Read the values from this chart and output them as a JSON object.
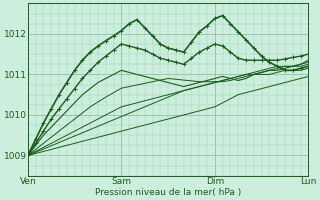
{
  "xlabel": "Pression niveau de la mer( hPa )",
  "bg_color": "#cceedd",
  "grid_color_minor": "#aaccbb",
  "grid_color_major": "#99bbaa",
  "line_color_dark": "#1a5c1a",
  "line_color_mid": "#2a7a2a",
  "ylim": [
    1008.5,
    1012.75
  ],
  "xlim": [
    0,
    72
  ],
  "yticks": [
    1009,
    1010,
    1011,
    1012
  ],
  "xticks": [
    0,
    24,
    48,
    72
  ],
  "xtick_labels": [
    "Ven",
    "Sam",
    "Dim",
    "Lun"
  ],
  "x_pts": [
    0,
    2,
    4,
    6,
    8,
    10,
    12,
    14,
    16,
    18,
    20,
    22,
    24,
    26,
    28,
    30,
    32,
    34,
    36,
    38,
    40,
    42,
    44,
    46,
    48,
    50,
    52,
    54,
    56,
    58,
    60,
    62,
    64,
    66,
    68,
    70,
    72
  ],
  "series": [
    [
      1009.0,
      1009.05,
      1009.1,
      1009.15,
      1009.2,
      1009.25,
      1009.3,
      1009.35,
      1009.4,
      1009.45,
      1009.5,
      1009.55,
      1009.6,
      1009.65,
      1009.7,
      1009.75,
      1009.8,
      1009.85,
      1009.9,
      1009.95,
      1010.0,
      1010.05,
      1010.1,
      1010.15,
      1010.2,
      1010.3,
      1010.4,
      1010.5,
      1010.55,
      1010.6,
      1010.65,
      1010.7,
      1010.75,
      1010.8,
      1010.85,
      1010.9,
      1010.95
    ],
    [
      1009.0,
      1009.08,
      1009.16,
      1009.24,
      1009.32,
      1009.4,
      1009.48,
      1009.56,
      1009.64,
      1009.72,
      1009.8,
      1009.88,
      1009.96,
      1010.04,
      1010.12,
      1010.2,
      1010.28,
      1010.36,
      1010.44,
      1010.52,
      1010.6,
      1010.65,
      1010.7,
      1010.75,
      1010.8,
      1010.85,
      1010.9,
      1010.95,
      1011.0,
      1011.0,
      1011.0,
      1011.0,
      1011.05,
      1011.1,
      1011.1,
      1011.1,
      1011.15
    ],
    [
      1009.0,
      1009.1,
      1009.2,
      1009.3,
      1009.4,
      1009.5,
      1009.6,
      1009.7,
      1009.8,
      1009.9,
      1010.0,
      1010.1,
      1010.2,
      1010.25,
      1010.3,
      1010.35,
      1010.4,
      1010.45,
      1010.5,
      1010.55,
      1010.6,
      1010.65,
      1010.7,
      1010.75,
      1010.8,
      1010.85,
      1010.9,
      1010.95,
      1011.0,
      1011.05,
      1011.1,
      1011.15,
      1011.2,
      1011.2,
      1011.2,
      1011.2,
      1011.25
    ],
    [
      1009.0,
      1009.15,
      1009.3,
      1009.45,
      1009.6,
      1009.75,
      1009.9,
      1010.05,
      1010.2,
      1010.32,
      1010.44,
      1010.55,
      1010.66,
      1010.7,
      1010.74,
      1010.78,
      1010.82,
      1010.86,
      1010.9,
      1010.88,
      1010.86,
      1010.84,
      1010.82,
      1010.82,
      1010.82,
      1010.82,
      1010.85,
      1010.9,
      1010.95,
      1011.0,
      1011.05,
      1011.1,
      1011.15,
      1011.2,
      1011.2,
      1011.25,
      1011.3
    ],
    [
      1009.0,
      1009.25,
      1009.5,
      1009.7,
      1009.9,
      1010.1,
      1010.3,
      1010.5,
      1010.65,
      1010.8,
      1010.9,
      1011.0,
      1011.1,
      1011.05,
      1011.0,
      1010.95,
      1010.9,
      1010.85,
      1010.8,
      1010.75,
      1010.7,
      1010.75,
      1010.8,
      1010.85,
      1010.9,
      1010.95,
      1010.9,
      1010.85,
      1010.9,
      1011.0,
      1011.05,
      1011.1,
      1011.1,
      1011.15,
      1011.2,
      1011.25,
      1011.35
    ],
    [
      1009.0,
      1009.3,
      1009.6,
      1009.9,
      1010.15,
      1010.4,
      1010.65,
      1010.9,
      1011.1,
      1011.3,
      1011.45,
      1011.6,
      1011.75,
      1011.7,
      1011.65,
      1011.6,
      1011.5,
      1011.4,
      1011.35,
      1011.3,
      1011.25,
      1011.4,
      1011.55,
      1011.65,
      1011.75,
      1011.7,
      1011.55,
      1011.4,
      1011.35,
      1011.35,
      1011.35,
      1011.35,
      1011.35,
      1011.38,
      1011.42,
      1011.45,
      1011.5
    ],
    [
      1009.0,
      1009.4,
      1009.8,
      1010.15,
      1010.5,
      1010.8,
      1011.1,
      1011.35,
      1011.55,
      1011.7,
      1011.83,
      1011.95,
      1012.08,
      1012.25,
      1012.35,
      1012.15,
      1011.95,
      1011.75,
      1011.65,
      1011.6,
      1011.55,
      1011.8,
      1012.05,
      1012.2,
      1012.38,
      1012.45,
      1012.25,
      1012.05,
      1011.85,
      1011.65,
      1011.45,
      1011.3,
      1011.2,
      1011.1,
      1011.1,
      1011.15,
      1011.2
    ]
  ],
  "series_styles": [
    {
      "lw": 0.7,
      "marker": null,
      "alpha": 1.0
    },
    {
      "lw": 0.7,
      "marker": null,
      "alpha": 1.0
    },
    {
      "lw": 0.7,
      "marker": null,
      "alpha": 1.0
    },
    {
      "lw": 0.7,
      "marker": null,
      "alpha": 1.0
    },
    {
      "lw": 0.8,
      "marker": null,
      "alpha": 1.0
    },
    {
      "lw": 1.0,
      "marker": "+",
      "alpha": 1.0
    },
    {
      "lw": 1.2,
      "marker": "+",
      "alpha": 1.0
    }
  ]
}
